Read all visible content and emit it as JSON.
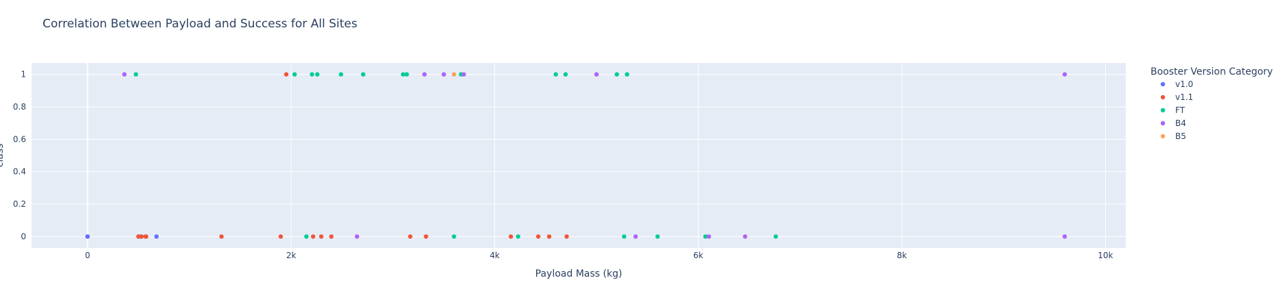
{
  "chart_data": {
    "type": "scatter",
    "title": "Correlation Between Payload and Success for All Sites",
    "xlabel": "Payload Mass (kg)",
    "ylabel": "class",
    "xlim": [
      -550,
      10200
    ],
    "ylim": [
      -0.07,
      1.07
    ],
    "x_ticks": [
      {
        "value": 0,
        "label": "0"
      },
      {
        "value": 2000,
        "label": "2k"
      },
      {
        "value": 4000,
        "label": "4k"
      },
      {
        "value": 6000,
        "label": "6k"
      },
      {
        "value": 8000,
        "label": "8k"
      },
      {
        "value": 10000,
        "label": "10k"
      }
    ],
    "y_ticks": [
      {
        "value": 0,
        "label": "0"
      },
      {
        "value": 0.2,
        "label": "0.2"
      },
      {
        "value": 0.4,
        "label": "0.4"
      },
      {
        "value": 0.6,
        "label": "0.6"
      },
      {
        "value": 0.8,
        "label": "0.8"
      },
      {
        "value": 1,
        "label": "1"
      }
    ],
    "grid": true,
    "legend_title": "Booster Version Category",
    "legend_position": "right",
    "background": "#e5ecf6",
    "series": [
      {
        "name": "v1.0",
        "color": "#636efa",
        "x": [
          0,
          0,
          525,
          500,
          677
        ],
        "y": [
          0,
          0,
          0,
          0,
          0
        ]
      },
      {
        "name": "v1.1",
        "color": "#ef553b",
        "x": [
          1952,
          570,
          530,
          575,
          1316,
          1898,
          2216,
          2296,
          2395,
          3170,
          3325,
          4159,
          4428,
          4535,
          4707,
          500
        ],
        "y": [
          1,
          0,
          0,
          0,
          0,
          0,
          0,
          0,
          0,
          0,
          0,
          0,
          0,
          0,
          0,
          0
        ]
      },
      {
        "name": "FT",
        "color": "#00cc96",
        "x": [
          475,
          2034,
          2205,
          2257,
          2490,
          2708,
          3100,
          3136,
          3669,
          4600,
          4696,
          5200,
          5300,
          2150,
          3600,
          4230,
          5271,
          5600,
          6070,
          6761
        ],
        "y": [
          1,
          1,
          1,
          1,
          1,
          1,
          1,
          1,
          1,
          1,
          1,
          1,
          1,
          0,
          0,
          0,
          0,
          0,
          0,
          0
        ]
      },
      {
        "name": "B4",
        "color": "#ab63fa",
        "x": [
          362,
          3310,
          3500,
          3696,
          5000,
          9600,
          2647,
          5384,
          6104,
          6460,
          9600
        ],
        "y": [
          1,
          1,
          1,
          1,
          1,
          1,
          0,
          0,
          0,
          0,
          0
        ]
      },
      {
        "name": "B5",
        "color": "#ffa15a",
        "x": [
          3600
        ],
        "y": [
          1
        ]
      }
    ]
  }
}
